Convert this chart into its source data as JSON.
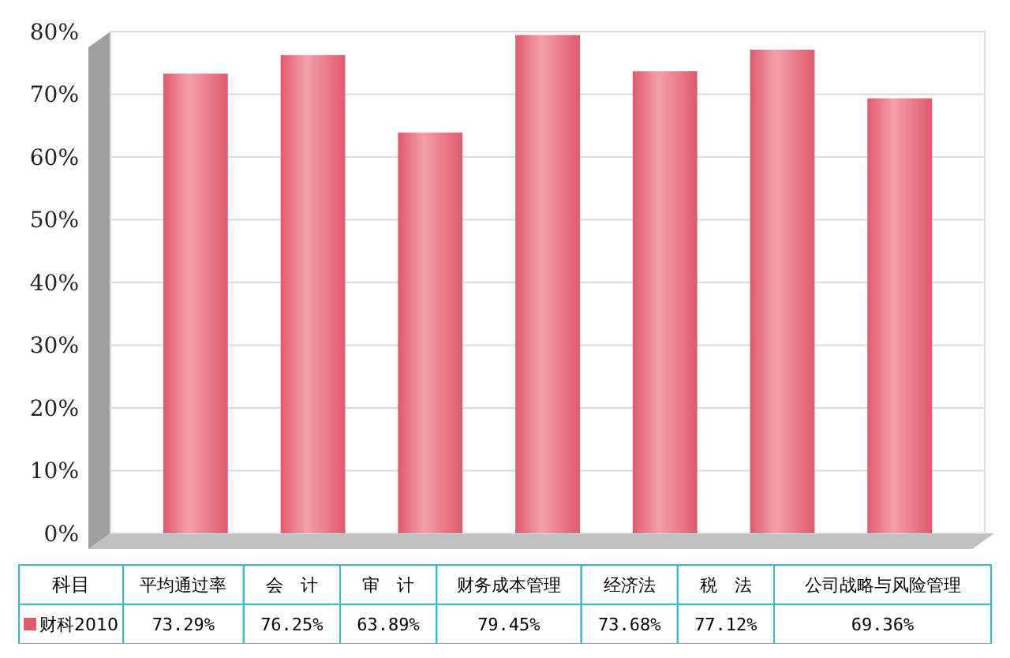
{
  "chart_data": {
    "type": "bar",
    "xlabel": "科目",
    "categories": [
      "平均通过率",
      "会　计",
      "审　计",
      "财务成本管理",
      "经济法",
      "税　法",
      "公司战略与风险管理"
    ],
    "series": [
      {
        "name": "财科2010",
        "color": "#e05a6e",
        "values": [
          73.29,
          76.25,
          63.89,
          79.45,
          73.68,
          77.12,
          69.36
        ],
        "value_labels": [
          "73.29%",
          "76.25%",
          "63.89%",
          "79.45%",
          "73.68%",
          "77.12%",
          "69.36%"
        ]
      }
    ],
    "ylim": [
      0,
      80
    ],
    "yticks": [
      {
        "value": 0,
        "label": "0%"
      },
      {
        "value": 10,
        "label": "10%"
      },
      {
        "value": 20,
        "label": "20%"
      },
      {
        "value": 30,
        "label": "30%"
      },
      {
        "value": 40,
        "label": "40%"
      },
      {
        "value": 50,
        "label": "50%"
      },
      {
        "value": 60,
        "label": "60%"
      },
      {
        "value": 70,
        "label": "70%"
      },
      {
        "value": 80,
        "label": "80%"
      }
    ],
    "grid": "y"
  }
}
